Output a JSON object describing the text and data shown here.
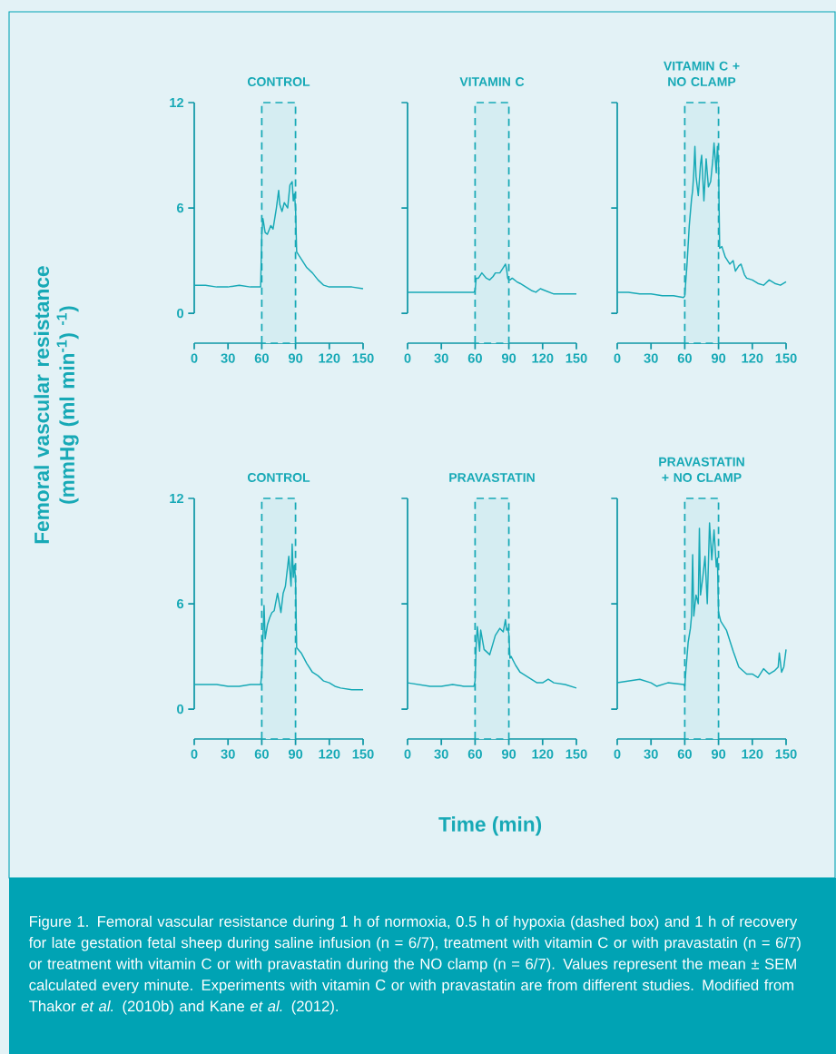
{
  "chart_data": [
    {
      "type": "line",
      "title": "CONTROL",
      "ylabel": "Femoral vascular resistance (mmHg (ml min$^{-1}$) $^{-1}$)",
      "color": "#17a9b6",
      "xlim": [
        0,
        150
      ],
      "ylim": [
        -1.7,
        12
      ],
      "xticks": [
        0,
        30,
        60,
        90,
        120,
        150
      ],
      "yticks": [
        0,
        6,
        12
      ],
      "x": [
        0,
        10,
        20,
        30,
        40,
        50,
        59,
        60,
        61,
        63,
        65,
        68,
        70,
        73,
        75,
        76,
        78,
        80,
        83,
        85,
        87,
        88,
        89,
        90,
        91,
        93,
        96,
        100,
        105,
        110,
        115,
        120,
        130,
        140,
        150
      ],
      "values": [
        1.6,
        1.6,
        1.5,
        1.5,
        1.6,
        1.5,
        1.5,
        4.5,
        5.4,
        4.6,
        4.5,
        5.0,
        4.8,
        6.0,
        7.0,
        6.2,
        5.8,
        6.3,
        6.0,
        7.3,
        7.5,
        6.4,
        6.8,
        6.0,
        3.5,
        3.3,
        3.0,
        2.6,
        2.3,
        1.9,
        1.6,
        1.5,
        1.5,
        1.5,
        1.4
      ],
      "bands": [
        {
          "axis": "x",
          "from": 60,
          "to": 90,
          "color": "#17a9b6"
        }
      ]
    },
    {
      "type": "line",
      "title": "VITAMIN C",
      "color": "#17a9b6",
      "xlim": [
        0,
        150
      ],
      "ylim": [
        -1.7,
        12
      ],
      "xticks": [
        0,
        30,
        60,
        90,
        120,
        150
      ],
      "yticks": [
        0,
        6,
        12
      ],
      "tick_labels": "x",
      "x": [
        0,
        10,
        20,
        30,
        40,
        50,
        59,
        60,
        61,
        63,
        66,
        70,
        73,
        76,
        78,
        82,
        85,
        87,
        88,
        89,
        90,
        91,
        93,
        97,
        100,
        105,
        110,
        114,
        118,
        122,
        130,
        140,
        150
      ],
      "values": [
        1.2,
        1.2,
        1.2,
        1.2,
        1.2,
        1.2,
        1.2,
        1.3,
        2.0,
        2.0,
        2.3,
        2.0,
        1.9,
        2.1,
        2.3,
        2.3,
        2.6,
        2.8,
        2.5,
        2.0,
        1.9,
        1.9,
        2.0,
        1.8,
        1.7,
        1.5,
        1.3,
        1.2,
        1.4,
        1.3,
        1.1,
        1.1,
        1.1
      ],
      "bands": [
        {
          "axis": "x",
          "from": 60,
          "to": 90,
          "color": "#17a9b6"
        }
      ]
    },
    {
      "type": "line",
      "title": "VITAMIN C + NO CLAMP",
      "color": "#17a9b6",
      "xlim": [
        0,
        150
      ],
      "ylim": [
        -1.7,
        12
      ],
      "xticks": [
        0,
        30,
        60,
        90,
        120,
        150
      ],
      "yticks": [
        0,
        6,
        12
      ],
      "tick_labels": "x",
      "x": [
        0,
        10,
        20,
        30,
        40,
        50,
        59,
        60,
        62,
        64,
        66,
        67,
        68,
        69,
        70,
        72,
        74,
        75,
        77,
        79,
        81,
        83,
        85,
        86,
        88,
        89,
        90,
        91,
        93,
        96,
        100,
        103,
        105,
        108,
        110,
        113,
        115,
        120,
        125,
        130,
        135,
        140,
        145,
        150
      ],
      "values": [
        1.2,
        1.2,
        1.1,
        1.1,
        1.0,
        1.0,
        0.9,
        1.0,
        2.8,
        5.0,
        6.5,
        7.0,
        8.0,
        9.5,
        7.8,
        6.7,
        8.5,
        9.0,
        6.4,
        8.8,
        7.2,
        7.5,
        8.8,
        9.7,
        8.0,
        9.5,
        8.6,
        3.7,
        3.8,
        3.2,
        2.8,
        3.0,
        2.4,
        2.7,
        2.8,
        2.2,
        2.0,
        1.9,
        1.7,
        1.6,
        1.9,
        1.7,
        1.6,
        1.8
      ],
      "bands": [
        {
          "axis": "x",
          "from": 60,
          "to": 90,
          "color": "#17a9b6"
        }
      ]
    },
    {
      "type": "line",
      "title": "CONTROL",
      "color": "#17a9b6",
      "xlim": [
        0,
        150
      ],
      "ylim": [
        -1.7,
        12
      ],
      "xticks": [
        0,
        30,
        60,
        90,
        120,
        150
      ],
      "yticks": [
        0,
        6,
        12
      ],
      "x": [
        0,
        10,
        20,
        30,
        40,
        50,
        59,
        60,
        61,
        62,
        63,
        65,
        67,
        69,
        71,
        74,
        77,
        79,
        81,
        84,
        86,
        87,
        88,
        89,
        90,
        91,
        95,
        100,
        105,
        110,
        115,
        120,
        125,
        130,
        140,
        150
      ],
      "values": [
        1.4,
        1.4,
        1.4,
        1.3,
        1.3,
        1.4,
        1.4,
        2.0,
        4.0,
        5.9,
        4.0,
        4.8,
        5.2,
        5.5,
        5.6,
        6.6,
        5.5,
        6.6,
        7.0,
        8.7,
        7.0,
        9.4,
        7.5,
        8.2,
        7.4,
        3.5,
        3.2,
        2.6,
        2.1,
        1.9,
        1.6,
        1.5,
        1.3,
        1.2,
        1.1,
        1.1
      ],
      "bands": [
        {
          "axis": "x",
          "from": 60,
          "to": 90,
          "color": "#17a9b6"
        }
      ]
    },
    {
      "type": "line",
      "title": "PRAVASTATIN",
      "xlabel": "Time (min)",
      "annotations": [
        "Figure 1. Femoral vascular resistance during 1 h of normoxia, 0.5 h of hypoxia (dashed box) and 1 h of recovery for late gestation fetal sheep during saline infusion (n = 6/7), treatment with vitamin C or with pravastatin (n = 6/7) or treatment with vitamin C or with pravastatin during the NO clamp (n = 6/7). Values represent the mean ± SEM calculated every minute. Experiments with vitamin C or with pravastatin are from different studies. Modified from Thakor *et al.* (2010b) and Kane *et al.* (2012)."
      ],
      "color": "#17a9b6",
      "xlim": [
        0,
        150
      ],
      "ylim": [
        -1.7,
        12
      ],
      "xticks": [
        0,
        30,
        60,
        90,
        120,
        150
      ],
      "yticks": [
        0,
        6,
        12
      ],
      "tick_labels": "x",
      "x": [
        0,
        10,
        20,
        30,
        40,
        50,
        59,
        60,
        61,
        62,
        64,
        65,
        68,
        73,
        78,
        82,
        85,
        87,
        88,
        89,
        90,
        91,
        92,
        96,
        100,
        105,
        110,
        115,
        120,
        125,
        130,
        140,
        150
      ],
      "values": [
        1.5,
        1.4,
        1.3,
        1.3,
        1.4,
        1.3,
        1.3,
        1.6,
        3.7,
        4.7,
        3.3,
        4.5,
        3.4,
        3.1,
        4.2,
        4.6,
        4.4,
        5.1,
        4.5,
        4.6,
        4.3,
        2.9,
        3.0,
        2.5,
        2.1,
        1.9,
        1.7,
        1.5,
        1.5,
        1.7,
        1.5,
        1.4,
        1.2
      ],
      "bands": [
        {
          "axis": "x",
          "from": 60,
          "to": 90,
          "color": "#17a9b6"
        }
      ]
    },
    {
      "type": "line",
      "title": "PRAVASTATIN + NO CLAMP",
      "color": "#17a9b6",
      "xlim": [
        0,
        150
      ],
      "ylim": [
        -1.7,
        12
      ],
      "xticks": [
        0,
        30,
        60,
        90,
        120,
        150
      ],
      "yticks": [
        0,
        6,
        12
      ],
      "tick_labels": "x",
      "x": [
        0,
        10,
        20,
        30,
        35,
        45,
        59,
        60,
        61,
        63,
        65,
        66,
        67,
        68,
        70,
        72,
        73,
        74,
        76,
        78,
        80,
        82,
        84,
        86,
        88,
        89,
        90,
        92,
        97,
        103,
        108,
        115,
        120,
        125,
        130,
        135,
        140,
        143,
        144,
        146,
        148,
        150
      ],
      "values": [
        1.5,
        1.6,
        1.7,
        1.5,
        1.3,
        1.5,
        1.4,
        1.3,
        2.2,
        3.8,
        4.6,
        5.3,
        8.8,
        5.3,
        6.5,
        6.0,
        10.3,
        6.5,
        7.5,
        8.7,
        6.0,
        10.6,
        8.5,
        10.2,
        8.1,
        8.6,
        5.5,
        5.0,
        4.5,
        3.3,
        2.4,
        2.0,
        2.0,
        1.8,
        2.3,
        2.0,
        2.2,
        2.4,
        3.2,
        2.1,
        2.4,
        3.4
      ],
      "bands": [
        {
          "axis": "x",
          "from": 60,
          "to": 90,
          "color": "#17a9b6"
        }
      ]
    }
  ]
}
